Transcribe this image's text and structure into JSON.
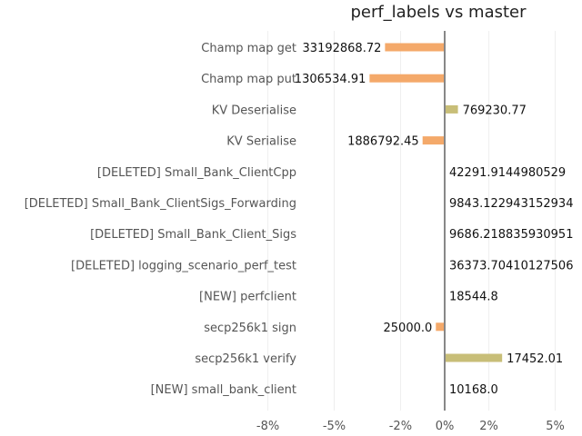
{
  "chart_data": {
    "type": "bar",
    "orientation": "horizontal",
    "title": "perf_labels vs master",
    "xlabel": "",
    "ylabel": "",
    "xlim": [
      -9,
      6
    ],
    "grid": true,
    "x_ticks": [
      {
        "value": -8,
        "label": "-8%"
      },
      {
        "value": -5,
        "label": "-5%"
      },
      {
        "value": -2,
        "label": "-2%"
      },
      {
        "value": 0,
        "label": "0%"
      },
      {
        "value": 2,
        "label": "2%"
      },
      {
        "value": 5,
        "label": "5%"
      }
    ],
    "colors": {
      "negative": "#f4a96a",
      "positive": "#c8be78",
      "zero_line": "#888888",
      "grid": "#eeeeee"
    },
    "bars": [
      {
        "category": "Champ map get",
        "value": -2.7,
        "label": "33192868.72"
      },
      {
        "category": "Champ map put",
        "value": -3.4,
        "label": "1306534.91"
      },
      {
        "category": "KV Deserialise",
        "value": 0.6,
        "label": "769230.77"
      },
      {
        "category": "KV Serialise",
        "value": -1.0,
        "label": "1886792.45"
      },
      {
        "category": "[DELETED] Small_Bank_ClientCpp",
        "value": 0,
        "label": "42291.9144980529"
      },
      {
        "category": "[DELETED] Small_Bank_ClientSigs_Forwarding",
        "value": 0,
        "label": "9843.122943152934"
      },
      {
        "category": "[DELETED] Small_Bank_Client_Sigs",
        "value": 0,
        "label": "9686.218835930951"
      },
      {
        "category": "[DELETED] logging_scenario_perf_test",
        "value": 0,
        "label": "36373.70410127506"
      },
      {
        "category": "[NEW] perfclient",
        "value": 0,
        "label": "18544.8"
      },
      {
        "category": "secp256k1 sign",
        "value": -0.4,
        "label": "25000.0"
      },
      {
        "category": "secp256k1 verify",
        "value": 2.6,
        "label": "17452.01"
      },
      {
        "category": "[NEW] small_bank_client",
        "value": 0,
        "label": "10168.0"
      }
    ]
  }
}
